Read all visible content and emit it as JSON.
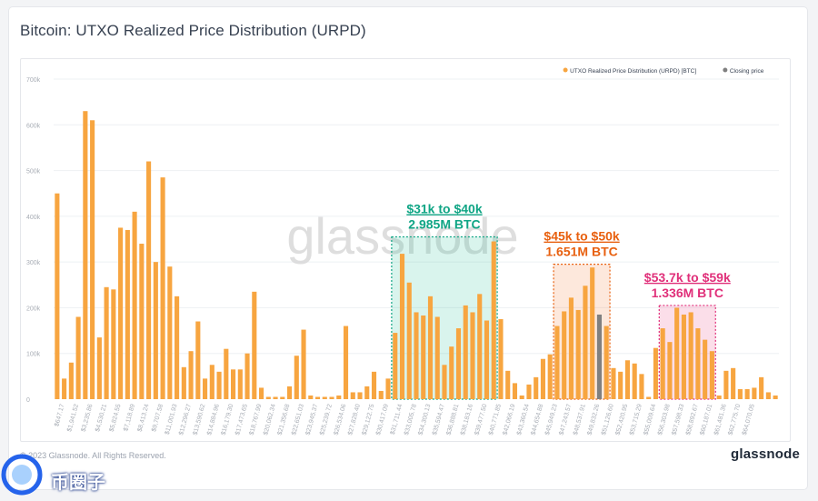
{
  "page": {
    "title": "Bitcoin: UTXO Realized Price Distribution (URPD)",
    "copyright": "© 2023 Glassnode. All Rights Reserved.",
    "brand": "glassnode",
    "watermark": "glassnode",
    "badge_text": "币圈子"
  },
  "colors": {
    "bar": "#f7a540",
    "closing": "#808080",
    "green": "#10a585",
    "orange": "#e8600f",
    "pink": "#e0307a",
    "grid": "#eef0f3",
    "tick": "#a8adb5"
  },
  "chart_data": {
    "type": "bar",
    "title": "Bitcoin: UTXO Realized Price Distribution (URPD)",
    "ylim": [
      0,
      700000
    ],
    "yticks": [
      0,
      100000,
      200000,
      300000,
      400000,
      500000,
      600000,
      700000
    ],
    "ytick_labels": [
      "0",
      "100k",
      "200k",
      "300k",
      "400k",
      "500k",
      "600k",
      "700k"
    ],
    "grid": "horizontal",
    "legend_placement": "top-right",
    "legend": [
      {
        "label": "UTXO Realized Price Distribution (URPD) [BTC]",
        "color": "#f7a540"
      },
      {
        "label": "Closing price",
        "color": "#808080"
      }
    ],
    "x_labels": [
      "$647.17",
      "$1,941.52",
      "$3,235.86",
      "$4,530.21",
      "$5,824.55",
      "$7,118.89",
      "$8,413.24",
      "$9,707.58",
      "$11,001.93",
      "$12,296.27",
      "$13,590.62",
      "$14,884.96",
      "$16,179.30",
      "$17,473.65",
      "$18,767.99",
      "$20,062.34",
      "$21,356.68",
      "$22,651.03",
      "$23,945.37",
      "$25,239.72",
      "$26,534.06",
      "$27,828.40",
      "$29,122.75",
      "$30,417.09",
      "$31,711.44",
      "$33,005.78",
      "$34,300.13",
      "$35,594.47",
      "$36,888.81",
      "$38,183.16",
      "$39,477.50",
      "$40,771.85",
      "$42,066.19",
      "$43,360.54",
      "$44,654.88",
      "$45,949.23",
      "$47,243.57",
      "$48,537.91",
      "$49,832.26",
      "$51,126.60",
      "$52,420.95",
      "$53,715.29",
      "$55,009.64",
      "$56,303.98",
      "$57,598.33",
      "$58,892.67",
      "$60,187.01",
      "$61,481.36",
      "$62,775.70",
      "$64,070.05"
    ],
    "values": [
      450000,
      45000,
      80000,
      180000,
      630000,
      610000,
      135000,
      245000,
      240000,
      375000,
      370000,
      410000,
      340000,
      520000,
      300000,
      485000,
      290000,
      225000,
      70000,
      105000,
      170000,
      45000,
      75000,
      60000,
      110000,
      65000,
      65000,
      100000,
      235000,
      25000,
      5000,
      5000,
      5000,
      28000,
      95000,
      152000,
      8000,
      5000,
      5000,
      5000,
      8000,
      160000,
      15000,
      15000,
      28000,
      60000,
      18000,
      45000,
      145000,
      318000,
      255000,
      190000,
      183000,
      225000,
      180000,
      75000,
      115000,
      155000,
      205000,
      190000,
      230000,
      172000,
      345000,
      175000,
      62000,
      35000,
      8000,
      32000,
      48000,
      88000,
      98000,
      160000,
      192000,
      222000,
      195000,
      248000,
      288000,
      185000,
      160000,
      68000,
      60000,
      85000,
      78000,
      55000,
      5000,
      112000,
      155000,
      125000,
      200000,
      185000,
      190000,
      155000,
      130000,
      105000,
      8000,
      62000,
      68000,
      22000,
      22000,
      25000,
      48000,
      15000,
      8000
    ],
    "closing_price_index": 77,
    "annotations": [
      {
        "label_range": "$31k to $40k",
        "label_amount": "2.985M BTC",
        "start_index": 48,
        "end_index": 62,
        "color": "#10a585",
        "fill": "rgba(16,185,140,0.16)",
        "top_value": 355000
      },
      {
        "label_range": "$45k to $50k",
        "label_amount": "1.651M BTC",
        "start_index": 71,
        "end_index": 78,
        "color": "#e8600f",
        "fill": "rgba(240,110,40,0.16)",
        "top_value": 295000
      },
      {
        "label_range": "$53.7k to $59k",
        "label_amount": "1.336M BTC",
        "start_index": 86,
        "end_index": 93,
        "color": "#e0307a",
        "fill": "rgba(230,50,120,0.16)",
        "top_value": 205000
      }
    ]
  }
}
